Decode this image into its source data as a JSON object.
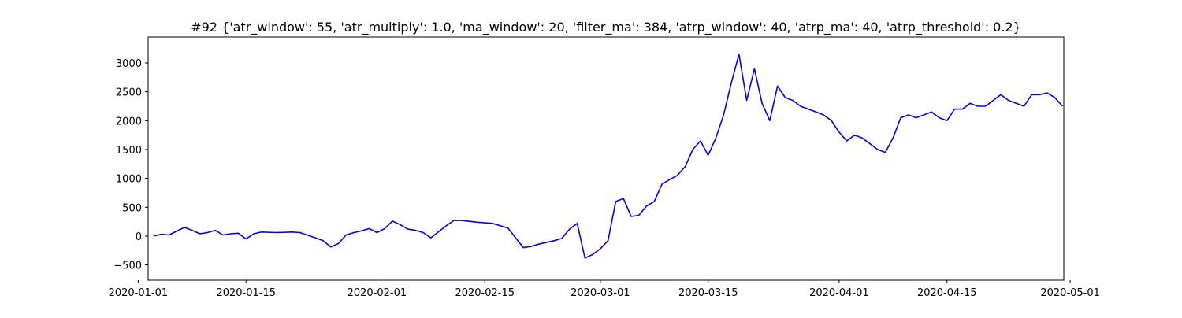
{
  "chart_data": {
    "type": "line",
    "title": "#92 {'atr_window': 55, 'atr_multiply': 1.0, 'ma_window': 20, 'filter_ma': 384, 'atrp_window': 40, 'atrp_ma': 40, 'atrp_threshold': 0.2}",
    "xlabel": "",
    "ylabel": "",
    "x_type": "date",
    "xlim": [
      "2020-01-02T07:00",
      "2020-04-30T04:00"
    ],
    "ylim": [
      -765,
      3450
    ],
    "grid": false,
    "legend": "none",
    "x_ticks": [
      "2020-01-01",
      "2020-01-15",
      "2020-02-01",
      "2020-02-15",
      "2020-03-01",
      "2020-03-15",
      "2020-04-01",
      "2020-04-15",
      "2020-05-01"
    ],
    "y_ticks": [
      -500,
      0,
      500,
      1000,
      1500,
      2000,
      2500,
      3000
    ],
    "series": [
      {
        "color": "#0000ff",
        "x": [
          "2020-01-03",
          "2020-01-04",
          "2020-01-05",
          "2020-01-07",
          "2020-01-08",
          "2020-01-09",
          "2020-01-10",
          "2020-01-11",
          "2020-01-12",
          "2020-01-13",
          "2020-01-14",
          "2020-01-15",
          "2020-01-16",
          "2020-01-17",
          "2020-01-19",
          "2020-01-21",
          "2020-01-22",
          "2020-01-24",
          "2020-01-25",
          "2020-01-26",
          "2020-01-27",
          "2020-01-28",
          "2020-01-29",
          "2020-01-30",
          "2020-01-31",
          "2020-02-01",
          "2020-02-02",
          "2020-02-03",
          "2020-02-04",
          "2020-02-05",
          "2020-02-06",
          "2020-02-07",
          "2020-02-08",
          "2020-02-10",
          "2020-02-11",
          "2020-02-12",
          "2020-02-14",
          "2020-02-16",
          "2020-02-18",
          "2020-02-20",
          "2020-02-21",
          "2020-02-22",
          "2020-02-24",
          "2020-02-25",
          "2020-02-26",
          "2020-02-27",
          "2020-02-28",
          "2020-02-29",
          "2020-03-01",
          "2020-03-02",
          "2020-03-03",
          "2020-03-04",
          "2020-03-05",
          "2020-03-06",
          "2020-03-07",
          "2020-03-08",
          "2020-03-09",
          "2020-03-10",
          "2020-03-11",
          "2020-03-12",
          "2020-03-13",
          "2020-03-14",
          "2020-03-15",
          "2020-03-16",
          "2020-03-17",
          "2020-03-18",
          "2020-03-19",
          "2020-03-20",
          "2020-03-21",
          "2020-03-22",
          "2020-03-23",
          "2020-03-24",
          "2020-03-25",
          "2020-03-26",
          "2020-03-27",
          "2020-03-28",
          "2020-03-29",
          "2020-03-30",
          "2020-03-31",
          "2020-04-01",
          "2020-04-02",
          "2020-04-03",
          "2020-04-04",
          "2020-04-05",
          "2020-04-06",
          "2020-04-07",
          "2020-04-08",
          "2020-04-09",
          "2020-04-10",
          "2020-04-11",
          "2020-04-12",
          "2020-04-13",
          "2020-04-14",
          "2020-04-15",
          "2020-04-16",
          "2020-04-17",
          "2020-04-18",
          "2020-04-19",
          "2020-04-20",
          "2020-04-21",
          "2020-04-22",
          "2020-04-23",
          "2020-04-24",
          "2020-04-25",
          "2020-04-26",
          "2020-04-27",
          "2020-04-28",
          "2020-04-29",
          "2020-04-30"
        ],
        "y": [
          0,
          30,
          20,
          150,
          100,
          40,
          60,
          100,
          20,
          40,
          50,
          -50,
          40,
          70,
          60,
          70,
          60,
          -30,
          -80,
          -190,
          -130,
          20,
          60,
          90,
          130,
          60,
          130,
          260,
          200,
          120,
          100,
          60,
          -30,
          180,
          270,
          270,
          240,
          220,
          140,
          -200,
          -180,
          -140,
          -80,
          -40,
          120,
          220,
          -380,
          -320,
          -220,
          -80,
          600,
          650,
          340,
          360,
          520,
          600,
          900,
          980,
          1050,
          1200,
          1500,
          1650,
          1400,
          1700,
          2100,
          2650,
          3150,
          2350,
          2900,
          2300,
          2000,
          2600,
          2400,
          2350,
          2250,
          2200,
          2150,
          2100,
          2000,
          1800,
          1650,
          1750,
          1700,
          1600,
          1500,
          1450,
          1700,
          2050,
          2100,
          2050,
          2100,
          2150,
          2050,
          2000,
          2200,
          2200,
          2300,
          2250,
          2250,
          2350,
          2450,
          2350,
          2300,
          2250,
          2450,
          2450,
          2480,
          2400,
          2250
        ]
      }
    ]
  }
}
